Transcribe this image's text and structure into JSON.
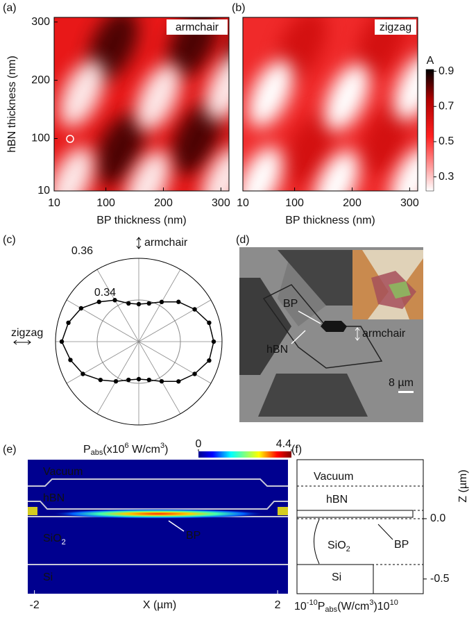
{
  "panels": {
    "a": {
      "label": "(a)",
      "annotation": "armchair",
      "xlabel": "BP thickness (nm)",
      "ylabel": "hBN thickness (nm)",
      "xlim": [
        10,
        314
      ],
      "ylim": [
        10,
        308
      ],
      "xticks": [
        10,
        100,
        200,
        300
      ],
      "yticks": [
        10,
        100,
        200,
        300
      ]
    },
    "b": {
      "label": "(b)",
      "annotation": "zigzag",
      "xlabel": "BP thickness (nm)",
      "xlim": [
        10,
        314
      ],
      "xticks": [
        10,
        100,
        200,
        300
      ],
      "colorbar": {
        "label": "A",
        "lim": [
          0.22,
          0.91
        ],
        "ticks": [
          0.3,
          0.5,
          0.7,
          0.9
        ]
      }
    },
    "c": {
      "label": "(c)",
      "type": "polar",
      "top_label": "armchair",
      "left_label": "zigzag",
      "rlim": [
        0.32,
        0.36
      ],
      "rticks": [
        0.34,
        0.36
      ],
      "theta": [
        0,
        15,
        30,
        45,
        60,
        75,
        90,
        105,
        120,
        135,
        150,
        165,
        180,
        195,
        210,
        225,
        240,
        255,
        270,
        285,
        300,
        315,
        330,
        345
      ],
      "r": [
        0.356,
        0.355,
        0.351,
        0.347,
        0.342,
        0.339,
        0.338,
        0.339,
        0.343,
        0.347,
        0.352,
        0.355,
        0.357,
        0.354,
        0.351,
        0.346,
        0.342,
        0.339,
        0.338,
        0.339,
        0.342,
        0.347,
        0.351,
        0.355
      ]
    },
    "d": {
      "label": "(d)",
      "bp": "BP",
      "hbn": "hBN",
      "direction": "armchair",
      "scale_bar": "8 µm"
    },
    "e": {
      "label": "(e)",
      "title": [
        "P",
        "abs",
        "(x10",
        "6",
        " W/cm",
        "3",
        ")"
      ],
      "clim": [
        0,
        4.4
      ],
      "cticks": [
        0,
        4.4
      ],
      "vacuum": "Vacuum",
      "hbn": "hBN",
      "sio2": [
        "SiO",
        "2"
      ],
      "bp": "BP",
      "si": "Si",
      "xlabel": "X (µm)",
      "xlim": [
        -2.11,
        2.17
      ],
      "xticks": [
        -2,
        2
      ]
    },
    "f": {
      "label": "(f)",
      "vacuum": "Vacuum",
      "hbn": "hBN",
      "sio2": [
        "SiO",
        "2"
      ],
      "bp": "BP",
      "si": "Si",
      "ylabel": "Z (µm)",
      "ylim": [
        -0.622,
        0.489
      ],
      "yticks": [
        {
          "value": 0,
          "label": "0.0"
        },
        -0.5
      ],
      "xlabel": [
        "10",
        "-10",
        "P",
        "abs",
        "(W/cm",
        "3",
        ")10",
        "10"
      ]
    }
  }
}
